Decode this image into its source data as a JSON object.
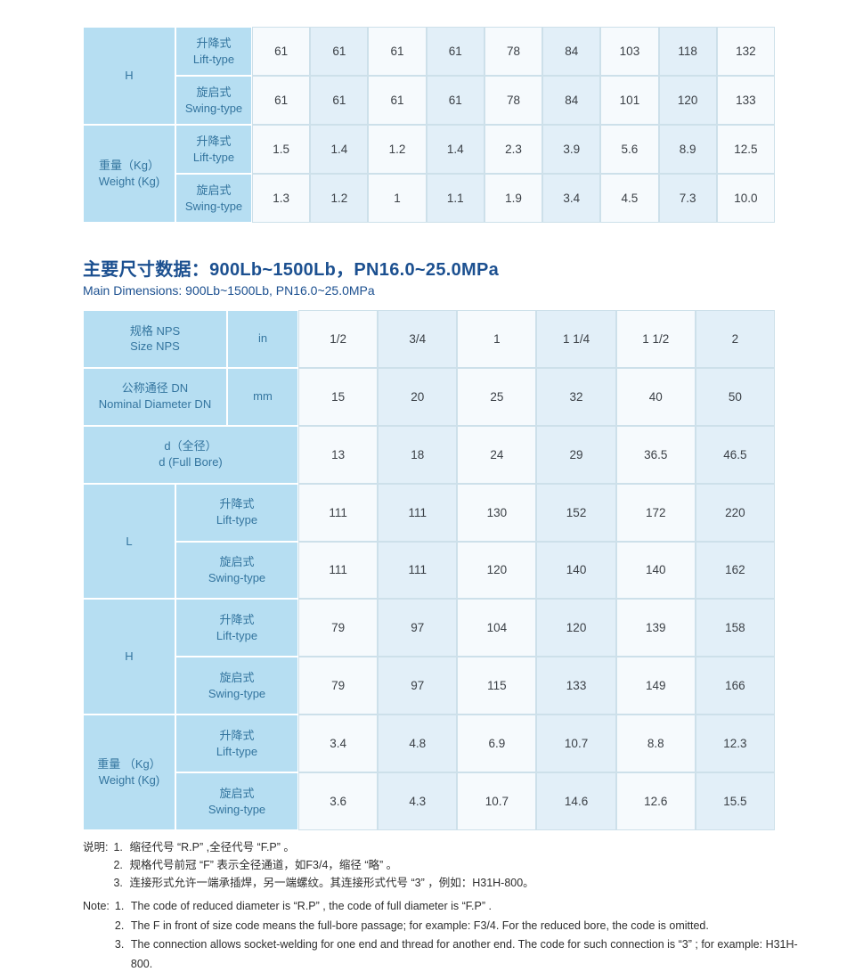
{
  "colors": {
    "header_bg": "#b6def2",
    "header_text": "#34759f",
    "cell_light": "#f6fafd",
    "cell_dark": "#e2eff8",
    "cell_border": "#cde0ea",
    "data_text": "#3b4046",
    "title_text": "#1c5090",
    "note_text": "#2e2e2e"
  },
  "section": {
    "title_cn": "主要尺寸数据：900Lb~1500Lb，PN16.0~25.0MPa",
    "title_en": "Main Dimensions: 900Lb~1500Lb, PN16.0~25.0MPa"
  },
  "table1": {
    "groups": [
      {
        "label_cn": "H",
        "label_en": "",
        "rows": [
          {
            "type_cn": "升降式",
            "type_en": "Lift-type",
            "values": [
              "61",
              "61",
              "61",
              "61",
              "78",
              "84",
              "103",
              "118",
              "132"
            ]
          },
          {
            "type_cn": "旋启式",
            "type_en": "Swing-type",
            "values": [
              "61",
              "61",
              "61",
              "61",
              "78",
              "84",
              "101",
              "120",
              "133"
            ]
          }
        ]
      },
      {
        "label_cn": "重量（Kg）",
        "label_en": "Weight (Kg)",
        "rows": [
          {
            "type_cn": "升降式",
            "type_en": "Lift-type",
            "values": [
              "1.5",
              "1.4",
              "1.2",
              "1.4",
              "2.3",
              "3.9",
              "5.6",
              "8.9",
              "12.5"
            ]
          },
          {
            "type_cn": "旋启式",
            "type_en": "Swing-type",
            "values": [
              "1.3",
              "1.2",
              "1",
              "1.1",
              "1.9",
              "3.4",
              "4.5",
              "7.3",
              "10.0"
            ]
          }
        ]
      }
    ]
  },
  "table2": {
    "header_rows": [
      {
        "label_cn": "规格 NPS",
        "label_en": "Size NPS",
        "unit": "in",
        "values": [
          "1/2",
          "3/4",
          "1",
          "1 1/4",
          "1 1/2",
          "2"
        ]
      },
      {
        "label_cn": "公称通径 DN",
        "label_en": "Nominal Diameter DN",
        "unit": "mm",
        "values": [
          "15",
          "20",
          "25",
          "32",
          "40",
          "50"
        ]
      },
      {
        "label_cn": "d（全径）",
        "label_en": "d (Full Bore)",
        "unit": null,
        "values": [
          "13",
          "18",
          "24",
          "29",
          "36.5",
          "46.5"
        ]
      }
    ],
    "groups": [
      {
        "label_cn": "L",
        "label_en": "",
        "rows": [
          {
            "type_cn": "升降式",
            "type_en": "Lift-type",
            "values": [
              "111",
              "111",
              "130",
              "152",
              "172",
              "220"
            ]
          },
          {
            "type_cn": "旋启式",
            "type_en": "Swing-type",
            "values": [
              "111",
              "111",
              "120",
              "140",
              "140",
              "162"
            ]
          }
        ]
      },
      {
        "label_cn": "H",
        "label_en": "",
        "rows": [
          {
            "type_cn": "升降式",
            "type_en": "Lift-type",
            "values": [
              "79",
              "97",
              "104",
              "120",
              "139",
              "158"
            ]
          },
          {
            "type_cn": "旋启式",
            "type_en": "Swing-type",
            "values": [
              "79",
              "97",
              "115",
              "133",
              "149",
              "166"
            ]
          }
        ]
      },
      {
        "label_cn": "重量 （Kg）",
        "label_en": "Weight (Kg)",
        "rows": [
          {
            "type_cn": "升降式",
            "type_en": "Lift-type",
            "values": [
              "3.4",
              "4.8",
              "6.9",
              "10.7",
              "8.8",
              "12.3"
            ]
          },
          {
            "type_cn": "旋启式",
            "type_en": "Swing-type",
            "values": [
              "3.6",
              "4.3",
              "10.7",
              "14.6",
              "12.6",
              "15.5"
            ]
          }
        ]
      }
    ]
  },
  "notes_cn": {
    "prefix": "说明:",
    "items": [
      {
        "num": "1.",
        "text": "缩径代号 “R.P” ,全径代号 “F.P” 。"
      },
      {
        "num": "2.",
        "text": "规格代号前冠 “F” 表示全径通道，如F3/4，缩径 “略” 。"
      },
      {
        "num": "3.",
        "text": "连接形式允许一端承插焊，另一端螺纹。其连接形式代号 “3” ，例如：H31H-800。"
      }
    ]
  },
  "notes_en": {
    "prefix": "Note:",
    "items": [
      {
        "num": "1.",
        "text": "The code of reduced diameter is “R.P” , the code of full diameter is “F.P” ."
      },
      {
        "num": "2.",
        "text": "The F in front of size code means the full-bore passage; for example: F3/4. For the reduced bore, the code is omitted."
      },
      {
        "num": "3.",
        "text": "The connection allows socket-welding for one end and thread for another end. The code for such connection is “3” ; for example: H31H-800."
      }
    ]
  }
}
